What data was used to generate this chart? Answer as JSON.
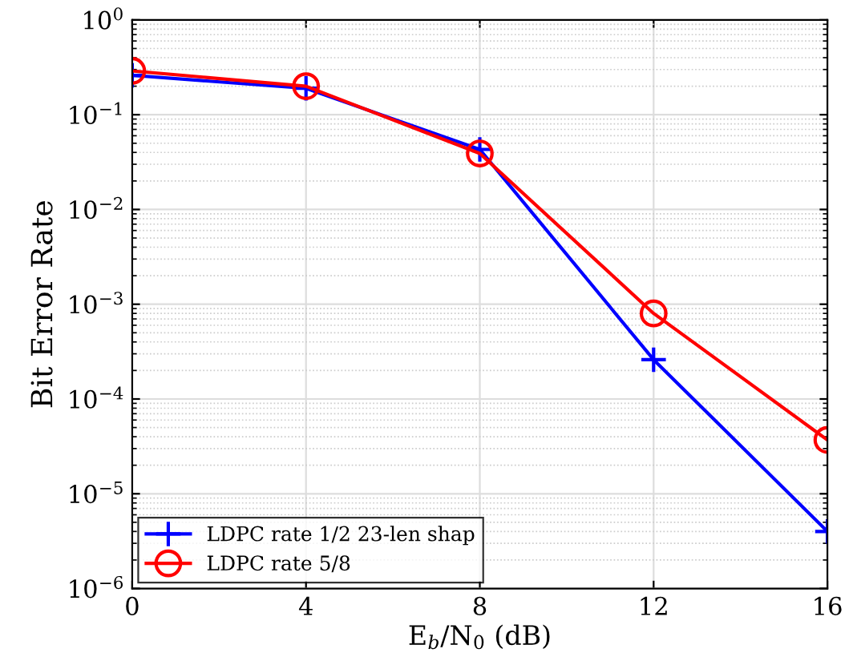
{
  "chart_data": {
    "type": "line",
    "xlabel": "E$_{b}$/N$_{0}$ (dB)",
    "ylabel": "Bit Error Rate",
    "x": [
      0,
      4,
      8,
      12,
      16
    ],
    "series": [
      {
        "name": "LDPC rate 1/2 23-len shap",
        "color": "#0000ff",
        "marker": "cross",
        "values": [
          0.26,
          0.19,
          0.043,
          0.00026,
          4e-06
        ]
      },
      {
        "name": "LDPC rate 5/8",
        "color": "#ff0000",
        "marker": "circle",
        "values": [
          0.29,
          0.2,
          0.039,
          0.0008,
          3.7e-05
        ]
      }
    ],
    "log": "y",
    "xlim": [
      0,
      16
    ],
    "xticks": [
      0,
      4,
      8,
      12,
      16
    ],
    "ylim": [
      1e-06,
      1
    ],
    "yticks": [
      {
        "value": 1e-06,
        "label": "10$^{−6}$"
      },
      {
        "value": 1e-05,
        "label": "10$^{−5}$"
      },
      {
        "value": 0.0001,
        "label": "10$^{−4}$"
      },
      {
        "value": 0.001,
        "label": "10$^{−3}$"
      },
      {
        "value": 0.01,
        "label": "10$^{−2}$"
      },
      {
        "value": 0.1,
        "label": "10$^{−1}$"
      },
      {
        "value": 1,
        "label": "10$^{0}$"
      }
    ],
    "grid": true,
    "legend": "bottom left",
    "line_style": "solid"
  }
}
